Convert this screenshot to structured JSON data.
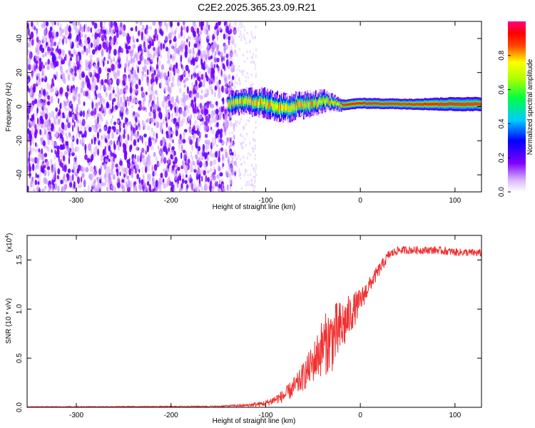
{
  "title": "C2E2.2025.365.23.09.R21",
  "chart_data": [
    {
      "type": "heatmap",
      "xlabel": "Height of straight line (km)",
      "ylabel": "Frequency (Hz)",
      "xlim": [
        -352,
        128
      ],
      "ylim": [
        -50,
        50
      ],
      "x_ticks": [
        -300,
        -200,
        -100,
        0,
        100
      ],
      "x_tick_labels": [
        "-300",
        "-200",
        "-100",
        "0",
        "100"
      ],
      "y_ticks": [
        -40,
        -20,
        0,
        20,
        40
      ],
      "y_tick_labels": [
        "-40",
        "-20",
        "0",
        "20",
        "40"
      ],
      "colorbar": {
        "label": "Normalized spectral amplitude",
        "range": [
          0,
          1
        ],
        "ticks": [
          0,
          0.2,
          0.4,
          0.6,
          0.8
        ],
        "tick_labels": [
          "0.0",
          "0.2",
          "0.4",
          "0.6",
          "0.8"
        ],
        "colormap": "rainbow (white-violet-blue-cyan-green-yellow-red-magenta)"
      },
      "noise_region": {
        "x_range": [
          -352,
          -140
        ],
        "amplitude": [
          0.05,
          0.2
        ]
      },
      "signal_ridge": [
        {
          "x": -140,
          "freq": 2,
          "width": 6
        },
        {
          "x": -120,
          "freq": 3,
          "width": 7
        },
        {
          "x": -100,
          "freq": 2,
          "width": 8
        },
        {
          "x": -80,
          "freq": -1,
          "width": 8
        },
        {
          "x": -60,
          "freq": 1,
          "width": 7
        },
        {
          "x": -40,
          "freq": 3,
          "width": 6
        },
        {
          "x": -20,
          "freq": 1,
          "width": 3
        },
        {
          "x": 0,
          "freq": 2,
          "width": 3
        },
        {
          "x": 50,
          "freq": 1.5,
          "width": 3
        },
        {
          "x": 100,
          "freq": 1.5,
          "width": 4
        },
        {
          "x": 128,
          "freq": 1.5,
          "width": 4
        }
      ]
    },
    {
      "type": "line",
      "xlabel": "Height of straight line (km)",
      "ylabel": "SNR (10 * v/v)",
      "y_scale_label": "(x10",
      "y_scale_exponent": "4",
      "xlim": [
        -352,
        128
      ],
      "ylim": [
        0,
        1.75
      ],
      "x_ticks": [
        -300,
        -200,
        -100,
        0,
        100
      ],
      "x_tick_labels": [
        "-300",
        "-200",
        "-100",
        "0",
        "100"
      ],
      "y_ticks": [
        0,
        0.5,
        1.0,
        1.5
      ],
      "y_tick_labels": [
        "0.0",
        "0.5",
        "1.0",
        "1.5"
      ],
      "series": [
        {
          "color": "#f03030",
          "x": [
            -352,
            -300,
            -200,
            -150,
            -120,
            -100,
            -80,
            -65,
            -50,
            -40,
            -30,
            -20,
            -10,
            0,
            10,
            20,
            30,
            40,
            60,
            80,
            100,
            128
          ],
          "y": [
            0.005,
            0.006,
            0.008,
            0.01,
            0.02,
            0.04,
            0.12,
            0.25,
            0.45,
            0.62,
            0.7,
            0.8,
            0.95,
            1.08,
            1.25,
            1.4,
            1.55,
            1.6,
            1.6,
            1.6,
            1.58,
            1.57
          ],
          "noise": [
            0.004,
            0.004,
            0.005,
            0.006,
            0.015,
            0.03,
            0.07,
            0.12,
            0.2,
            0.3,
            0.35,
            0.3,
            0.2,
            0.13,
            0.08,
            0.07,
            0.05,
            0.04,
            0.04,
            0.04,
            0.04,
            0.04
          ]
        }
      ]
    }
  ]
}
